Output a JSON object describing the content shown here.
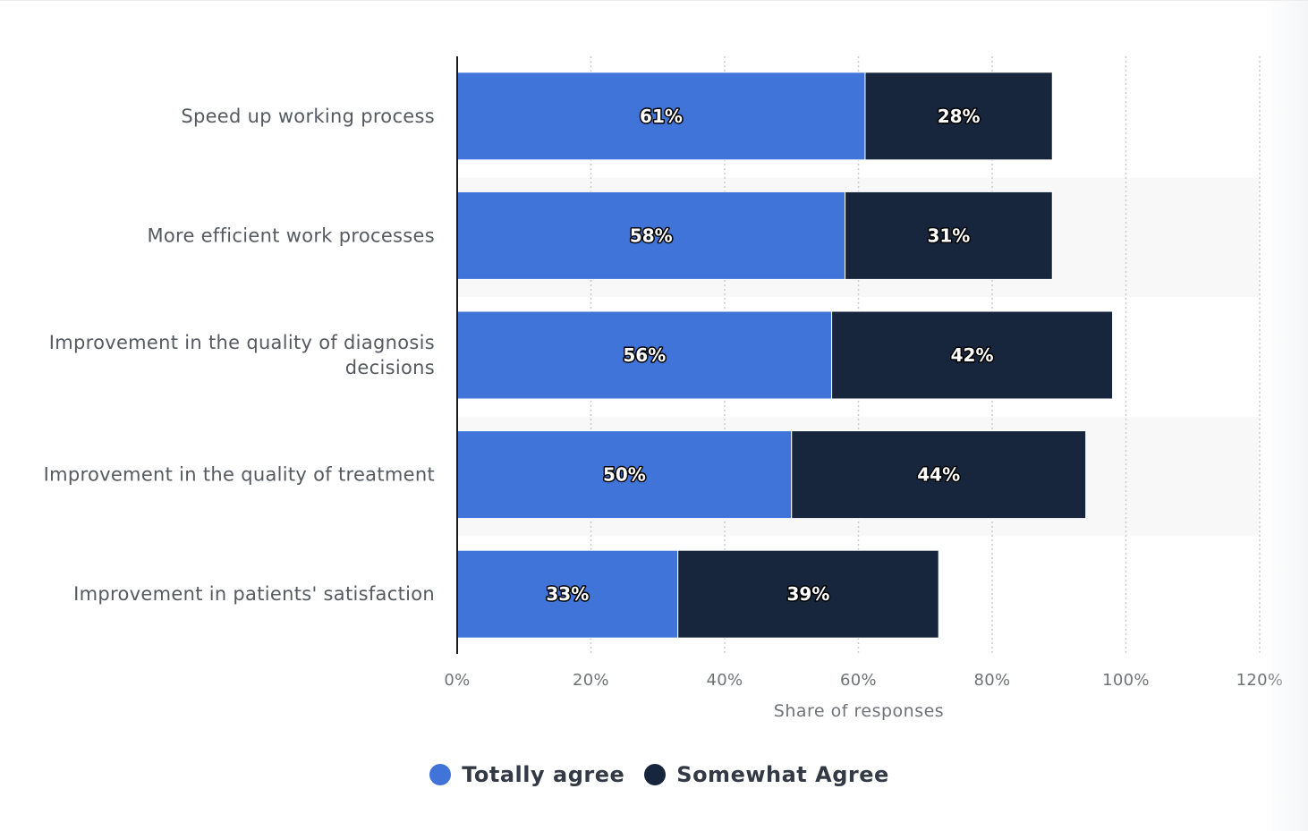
{
  "chart_data": {
    "type": "bar",
    "orientation": "horizontal",
    "stacked": true,
    "categories": [
      "Speed up working process",
      "More efficient work processes",
      "Improvement in the quality of diagnosis decisions",
      "Improvement in the quality of treatment",
      "Improvement in patients' satisfaction"
    ],
    "category_lines": [
      [
        "Speed up working process"
      ],
      [
        "More efficient work processes"
      ],
      [
        "Improvement in the quality of diagnosis",
        "decisions"
      ],
      [
        "Improvement in the quality of treatment"
      ],
      [
        "Improvement in patients' satisfaction"
      ]
    ],
    "series": [
      {
        "name": "Totally agree",
        "color": "#4074d8",
        "values": [
          61,
          58,
          56,
          50,
          33
        ],
        "labels": [
          "61%",
          "58%",
          "56%",
          "50%",
          "33%"
        ]
      },
      {
        "name": "Somewhat Agree",
        "color": "#17263c",
        "values": [
          28,
          31,
          42,
          44,
          39
        ],
        "labels": [
          "28%",
          "31%",
          "42%",
          "44%",
          "39%"
        ]
      }
    ],
    "xlim": [
      0,
      120
    ],
    "x_ticks": [
      0,
      20,
      40,
      60,
      80,
      100,
      120
    ],
    "x_tick_labels": [
      "0%",
      "20%",
      "40%",
      "60%",
      "80%",
      "100%",
      "120%"
    ],
    "xlabel": "Share of responses",
    "ylabel": "",
    "title": "",
    "grid": "vertical dotted",
    "legend_position": "bottom-center"
  },
  "legend": {
    "items": [
      {
        "label": "Totally agree",
        "color": "#4074d8"
      },
      {
        "label": "Somewhat Agree",
        "color": "#17263c"
      }
    ]
  }
}
